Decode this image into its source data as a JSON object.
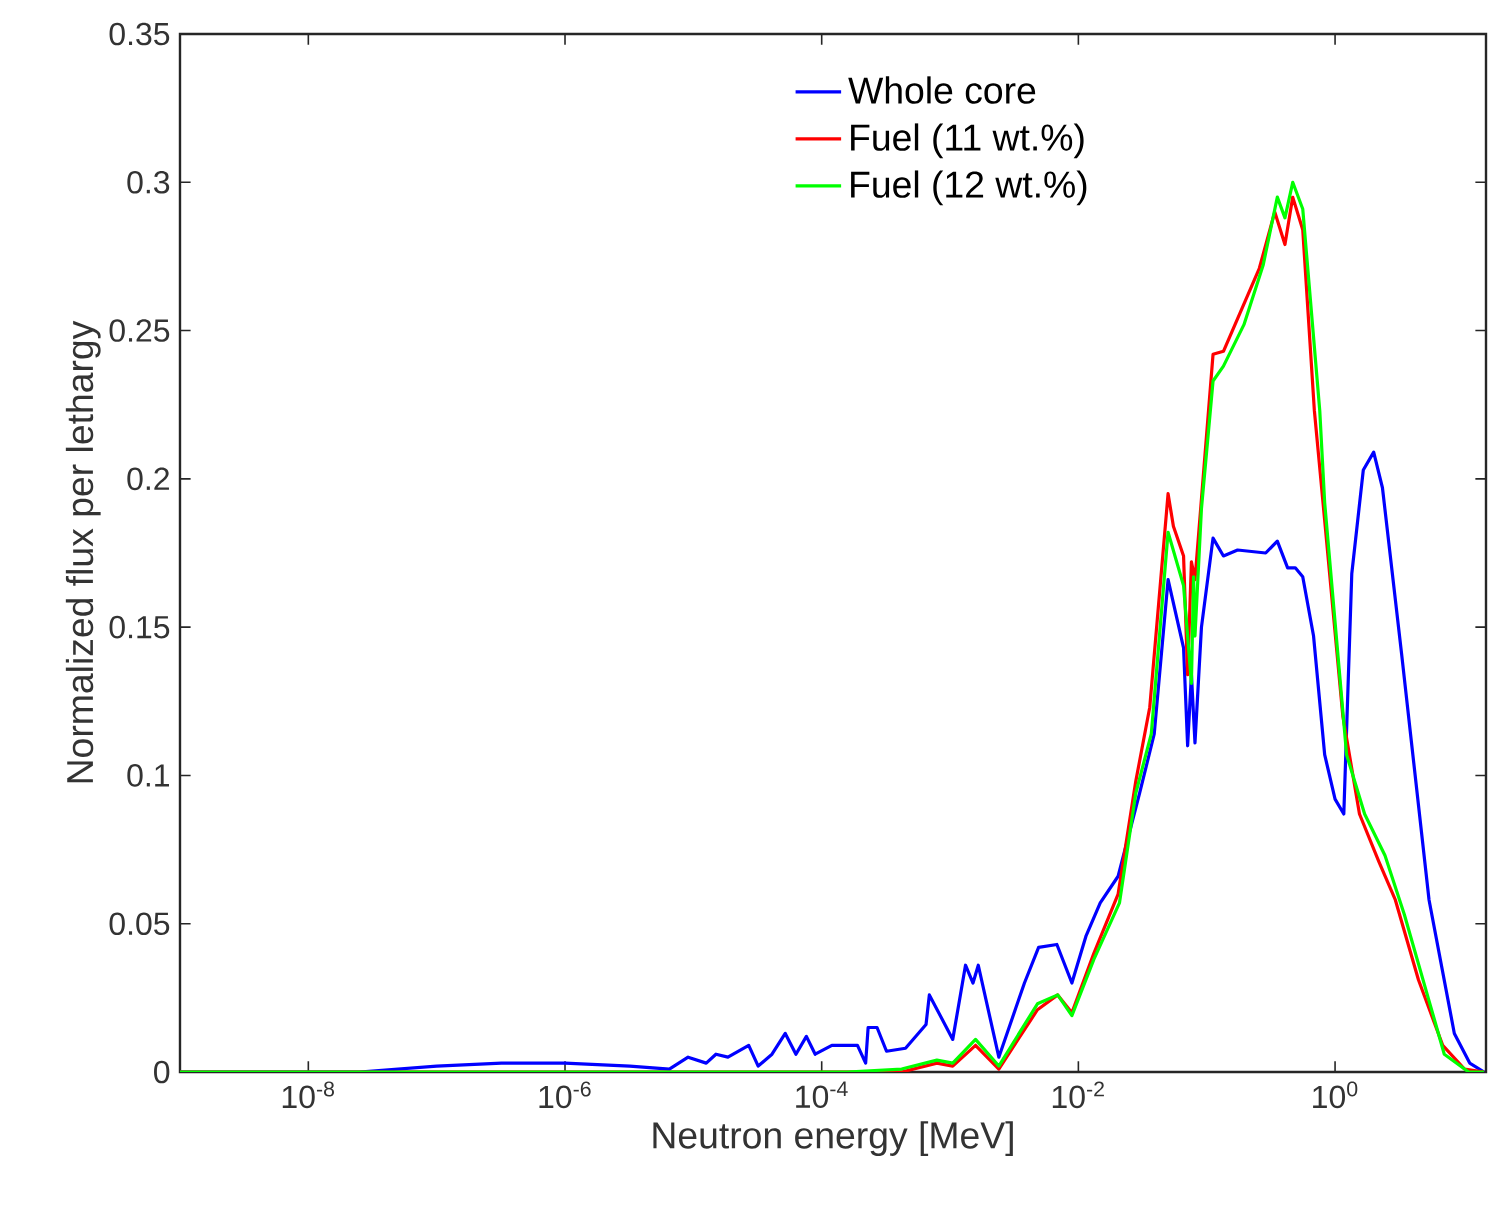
{
  "chart_data": {
    "type": "line",
    "xlabel": "Neutron energy [MeV]",
    "ylabel": "Normalized flux per lethargy",
    "log": "x",
    "xlim": [
      1e-09,
      15
    ],
    "ylim": [
      0,
      0.35
    ],
    "xticks": [
      {
        "value": 1e-08,
        "label": "10$^{-8}$"
      },
      {
        "value": 1e-06,
        "label": "10$^{-6}$"
      },
      {
        "value": 0.0001,
        "label": "10$^{-4}$"
      },
      {
        "value": 0.01,
        "label": "10$^{-2}$"
      },
      {
        "value": 1,
        "label": "10$^{0}$"
      }
    ],
    "yticks": [
      0,
      0.05,
      0.1,
      0.15,
      0.2,
      0.25,
      0.3,
      0.35
    ],
    "legend": "top",
    "series": [
      {
        "name": "Whole core",
        "color": "#0000ff",
        "x": [
          1e-09,
          2.5e-08,
          1e-07,
          3.2e-07,
          1e-06,
          3.2e-06,
          6.5e-06,
          9.1e-06,
          1.26e-05,
          1.5e-05,
          1.86e-05,
          2.7e-05,
          3.2e-05,
          4.1e-05,
          5.2e-05,
          6.3e-05,
          7.6e-05,
          8.9e-05,
          0.00012,
          0.00019,
          0.00022,
          0.00023,
          0.00027,
          0.00032,
          0.00045,
          0.00065,
          0.00069,
          0.00105,
          0.00132,
          0.00151,
          0.00166,
          0.0024,
          0.0038,
          0.0049,
          0.0068,
          0.0089,
          0.0115,
          0.0148,
          0.0204,
          0.03,
          0.039,
          0.05,
          0.066,
          0.071,
          0.076,
          0.081,
          0.091,
          0.112,
          0.135,
          0.174,
          0.288,
          0.355,
          0.427,
          0.49,
          0.56,
          0.68,
          0.83,
          1.0,
          1.17,
          1.35,
          1.66,
          2.0,
          2.34,
          3.3,
          5.4,
          8.5,
          11.2,
          14.5
        ],
        "values": [
          0,
          0,
          0.002,
          0.003,
          0.003,
          0.002,
          0.001,
          0.005,
          0.003,
          0.006,
          0.005,
          0.009,
          0.002,
          0.006,
          0.013,
          0.006,
          0.012,
          0.006,
          0.009,
          0.009,
          0.003,
          0.015,
          0.015,
          0.007,
          0.008,
          0.016,
          0.026,
          0.011,
          0.036,
          0.03,
          0.036,
          0.005,
          0.03,
          0.042,
          0.043,
          0.03,
          0.046,
          0.057,
          0.066,
          0.094,
          0.114,
          0.166,
          0.143,
          0.11,
          0.134,
          0.111,
          0.15,
          0.18,
          0.174,
          0.176,
          0.175,
          0.179,
          0.17,
          0.17,
          0.167,
          0.147,
          0.107,
          0.092,
          0.087,
          0.168,
          0.203,
          0.209,
          0.197,
          0.141,
          0.058,
          0.013,
          0.003,
          0
        ]
      },
      {
        "name": "Fuel (11 wt.%)",
        "color": "#ff0000",
        "x": [
          1e-09,
          0.000158,
          0.00042,
          0.00079,
          0.00105,
          0.00158,
          0.0024,
          0.0048,
          0.0069,
          0.0089,
          0.0132,
          0.0204,
          0.028,
          0.036,
          0.05,
          0.055,
          0.066,
          0.071,
          0.076,
          0.081,
          0.112,
          0.135,
          0.182,
          0.257,
          0.339,
          0.407,
          0.468,
          0.56,
          0.69,
          0.83,
          1.15,
          1.55,
          2.19,
          2.95,
          4.47,
          6.9,
          10.2,
          14.5
        ],
        "values": [
          0,
          0,
          0,
          0.003,
          0.002,
          0.009,
          0.001,
          0.021,
          0.026,
          0.02,
          0.04,
          0.06,
          0.098,
          0.123,
          0.195,
          0.184,
          0.174,
          0.134,
          0.172,
          0.166,
          0.242,
          0.243,
          0.256,
          0.271,
          0.29,
          0.279,
          0.295,
          0.284,
          0.223,
          0.186,
          0.12,
          0.087,
          0.071,
          0.058,
          0.031,
          0.009,
          0.001,
          0
        ]
      },
      {
        "name": "Fuel (12 wt.%)",
        "color": "#00ff00",
        "x": [
          1e-09,
          0.000158,
          0.00042,
          0.00079,
          0.00105,
          0.00158,
          0.0024,
          0.0048,
          0.0069,
          0.0089,
          0.0132,
          0.0209,
          0.028,
          0.037,
          0.05,
          0.066,
          0.076,
          0.079,
          0.081,
          0.091,
          0.112,
          0.135,
          0.195,
          0.275,
          0.355,
          0.407,
          0.468,
          0.56,
          0.76,
          0.83,
          1.23,
          1.7,
          2.45,
          3.47,
          5.4,
          7.1,
          11,
          14.5
        ],
        "values": [
          0,
          0,
          0.001,
          0.004,
          0.003,
          0.011,
          0.002,
          0.023,
          0.026,
          0.019,
          0.038,
          0.057,
          0.094,
          0.114,
          0.182,
          0.164,
          0.131,
          0.167,
          0.147,
          0.19,
          0.233,
          0.238,
          0.252,
          0.272,
          0.295,
          0.288,
          0.3,
          0.291,
          0.223,
          0.192,
          0.107,
          0.087,
          0.073,
          0.053,
          0.024,
          0.006,
          0,
          0
        ]
      }
    ]
  }
}
